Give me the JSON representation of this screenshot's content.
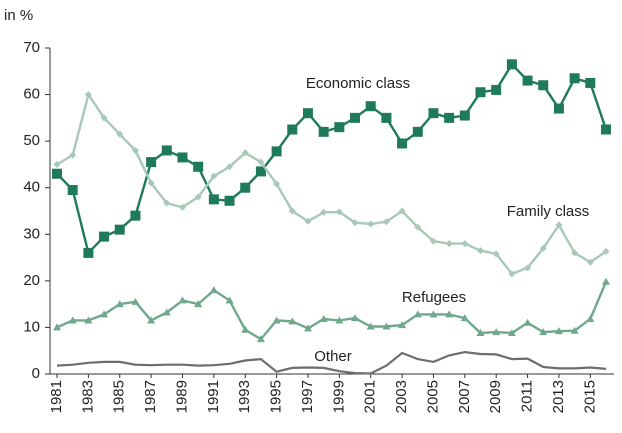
{
  "chart_data": {
    "type": "line",
    "y_axis_label": "in %",
    "x": [
      1981,
      1982,
      1983,
      1984,
      1985,
      1986,
      1987,
      1988,
      1989,
      1990,
      1991,
      1992,
      1993,
      1994,
      1995,
      1996,
      1997,
      1998,
      1999,
      2000,
      2001,
      2002,
      2003,
      2004,
      2005,
      2006,
      2007,
      2008,
      2009,
      2010,
      2011,
      2012,
      2013,
      2014,
      2015,
      2016
    ],
    "xlim": [
      1981,
      2016
    ],
    "xticks": [
      1981,
      1983,
      1985,
      1987,
      1989,
      1991,
      1993,
      1995,
      1997,
      1999,
      2001,
      2003,
      2005,
      2007,
      2009,
      2011,
      2013,
      2015
    ],
    "ylim": [
      0,
      70
    ],
    "yticks": [
      0,
      10,
      20,
      30,
      40,
      50,
      60,
      70
    ],
    "grid": false,
    "series": [
      {
        "name": "Economic class",
        "color": "#1e7a5a",
        "marker": "square",
        "values": [
          43,
          39.5,
          26,
          29.5,
          31,
          34,
          45.5,
          48,
          46.5,
          44.5,
          37.5,
          37.2,
          40,
          43.5,
          47.8,
          52.5,
          56,
          52,
          53,
          55,
          57.5,
          55,
          49.5,
          52,
          56,
          55,
          55.5,
          60.5,
          61,
          66.5,
          63,
          62,
          57,
          63.5,
          62.5,
          52.5
        ]
      },
      {
        "name": "Family class",
        "color": "#a8c8b8",
        "marker": "diamond",
        "values": [
          45,
          47,
          60,
          55,
          51.5,
          48,
          41,
          36.7,
          35.8,
          38,
          42.5,
          44.5,
          47.5,
          45.5,
          40.8,
          35,
          32.8,
          34.7,
          34.8,
          32.5,
          32.2,
          32.7,
          35,
          31.5,
          28.5,
          28,
          28,
          26.5,
          25.8,
          21.5,
          22.8,
          27,
          32,
          26,
          24,
          26.3
        ]
      },
      {
        "name": "Refugees",
        "color": "#6fa88a",
        "marker": "triangle",
        "values": [
          10,
          11.5,
          11.5,
          12.8,
          15,
          15.5,
          11.5,
          13.2,
          15.8,
          15,
          18,
          15.8,
          9.5,
          7.5,
          11.5,
          11.3,
          9.8,
          11.8,
          11.5,
          12,
          10.2,
          10.2,
          10.5,
          12.8,
          12.8,
          12.8,
          12,
          8.8,
          9,
          8.8,
          11,
          9,
          9.2,
          9.3,
          11.8,
          19.8
        ]
      },
      {
        "name": "Other",
        "color": "#6d6d6d",
        "marker": "none",
        "values": [
          1.8,
          2,
          2.4,
          2.6,
          2.6,
          2,
          1.9,
          2,
          2,
          1.8,
          1.9,
          2.2,
          2.9,
          3.2,
          0.5,
          1.3,
          1.4,
          1.3,
          0.6,
          0.2,
          0.1,
          1.8,
          4.5,
          3.2,
          2.6,
          4,
          4.7,
          4.3,
          4.2,
          3.2,
          3.3,
          1.5,
          1.2,
          1.2,
          1.4,
          1.1
        ]
      }
    ]
  }
}
